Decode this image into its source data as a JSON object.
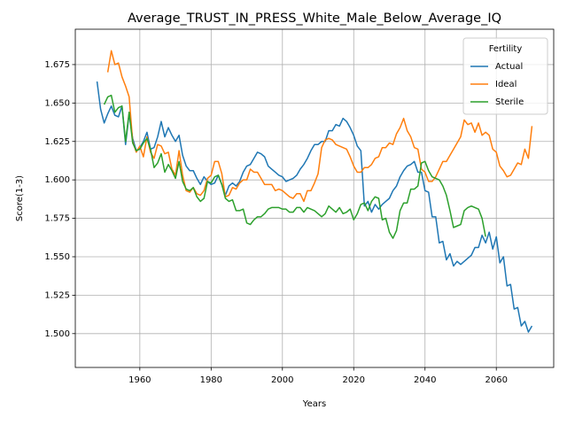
{
  "chart_data": {
    "type": "line",
    "title": "Average_TRUST_IN_PRESS_White_Male_Below_Average_IQ",
    "x_label": "Years",
    "y_label": "Score(1-3)",
    "legend_title": "Fertility",
    "legend_position": "upper right",
    "grid": true,
    "xlim": [
      1941.9,
      2076.1
    ],
    "ylim": [
      1.478,
      1.698
    ],
    "xticks": [
      1960,
      1980,
      2000,
      2020,
      2040,
      2060
    ],
    "yticks": [
      {
        "value": 1.5,
        "label": "1.500"
      },
      {
        "value": 1.525,
        "label": "1.525"
      },
      {
        "value": 1.55,
        "label": "1.550"
      },
      {
        "value": 1.575,
        "label": "1.575"
      },
      {
        "value": 1.6,
        "label": "1.600"
      },
      {
        "value": 1.625,
        "label": "1.625"
      },
      {
        "value": 1.65,
        "label": "1.650"
      },
      {
        "value": 1.675,
        "label": "1.675"
      }
    ],
    "x": [
      1948,
      1949,
      1950,
      1951,
      1952,
      1953,
      1954,
      1955,
      1956,
      1957,
      1958,
      1959,
      1960,
      1961,
      1962,
      1963,
      1964,
      1965,
      1966,
      1967,
      1968,
      1969,
      1970,
      1971,
      1972,
      1973,
      1974,
      1975,
      1976,
      1977,
      1978,
      1979,
      1980,
      1981,
      1982,
      1983,
      1984,
      1985,
      1986,
      1987,
      1988,
      1989,
      1990,
      1991,
      1992,
      1993,
      1994,
      1995,
      1996,
      1997,
      1998,
      1999,
      2000,
      2001,
      2002,
      2003,
      2004,
      2005,
      2006,
      2007,
      2008,
      2009,
      2010,
      2011,
      2012,
      2013,
      2014,
      2015,
      2016,
      2017,
      2018,
      2019,
      2020,
      2021,
      2022,
      2023,
      2024,
      2025,
      2026,
      2027,
      2028,
      2029,
      2030,
      2031,
      2032,
      2033,
      2034,
      2035,
      2036,
      2037,
      2038,
      2039,
      2040,
      2041,
      2042,
      2043,
      2044,
      2045,
      2046,
      2047,
      2048,
      2049,
      2050,
      2051,
      2052,
      2053,
      2054,
      2055,
      2056,
      2057,
      2058,
      2059,
      2060,
      2061,
      2062,
      2063,
      2064,
      2065,
      2066,
      2067,
      2068,
      2069,
      2070
    ],
    "series": [
      {
        "name": "Actual",
        "color": "#1f77b4",
        "values": [
          1.664,
          1.646,
          1.637,
          1.643,
          1.648,
          1.642,
          1.641,
          1.648,
          1.623,
          1.643,
          1.627,
          1.619,
          1.621,
          1.625,
          1.631,
          1.62,
          1.621,
          1.628,
          1.638,
          1.628,
          1.634,
          1.629,
          1.625,
          1.629,
          1.616,
          1.609,
          1.606,
          1.606,
          1.601,
          1.597,
          1.602,
          1.599,
          1.597,
          1.598,
          1.603,
          1.597,
          1.59,
          1.596,
          1.598,
          1.596,
          1.599,
          1.605,
          1.609,
          1.61,
          1.614,
          1.618,
          1.617,
          1.615,
          1.609,
          1.607,
          1.605,
          1.603,
          1.602,
          1.599,
          1.6,
          1.601,
          1.603,
          1.607,
          1.61,
          1.614,
          1.619,
          1.623,
          1.623,
          1.625,
          1.625,
          1.632,
          1.632,
          1.636,
          1.635,
          1.64,
          1.638,
          1.634,
          1.629,
          1.622,
          1.619,
          1.583,
          1.586,
          1.579,
          1.584,
          1.581,
          1.584,
          1.586,
          1.588,
          1.593,
          1.596,
          1.602,
          1.606,
          1.609,
          1.61,
          1.612,
          1.605,
          1.605,
          1.593,
          1.592,
          1.576,
          1.576,
          1.559,
          1.56,
          1.548,
          1.552,
          1.544,
          1.547,
          1.545,
          1.547,
          1.549,
          1.551,
          1.556,
          1.556,
          1.564,
          1.559,
          1.566,
          1.555,
          1.563,
          1.546,
          1.55,
          1.531,
          1.532,
          1.516,
          1.517,
          1.505,
          1.508,
          1.501,
          1.505
        ]
      },
      {
        "name": "Ideal",
        "color": "#ff7f0e",
        "values": [
          null,
          null,
          null,
          1.67,
          1.684,
          1.675,
          1.676,
          1.667,
          1.661,
          1.654,
          1.625,
          1.618,
          1.622,
          1.615,
          1.628,
          1.618,
          1.614,
          1.623,
          1.622,
          1.617,
          1.618,
          1.607,
          1.603,
          1.619,
          1.603,
          1.593,
          1.592,
          1.595,
          1.591,
          1.59,
          1.593,
          1.601,
          1.603,
          1.612,
          1.612,
          1.604,
          1.589,
          1.59,
          1.595,
          1.594,
          1.598,
          1.6,
          1.6,
          1.607,
          1.605,
          1.605,
          1.601,
          1.597,
          1.597,
          1.597,
          1.593,
          1.594,
          1.593,
          1.591,
          1.589,
          1.588,
          1.591,
          1.591,
          1.586,
          1.593,
          1.593,
          1.598,
          1.604,
          1.621,
          1.626,
          1.627,
          1.626,
          1.623,
          1.622,
          1.621,
          1.62,
          1.615,
          1.609,
          1.605,
          1.605,
          1.608,
          1.608,
          1.61,
          1.614,
          1.615,
          1.621,
          1.621,
          1.624,
          1.623,
          1.63,
          1.634,
          1.64,
          1.632,
          1.628,
          1.621,
          1.62,
          1.607,
          1.605,
          1.599,
          1.599,
          1.602,
          1.607,
          1.612,
          1.612,
          1.616,
          1.62,
          1.624,
          1.628,
          1.639,
          1.636,
          1.637,
          1.631,
          1.637,
          1.629,
          1.631,
          1.629,
          1.62,
          1.618,
          1.609,
          1.606,
          1.602,
          1.603,
          1.607,
          1.611,
          1.61,
          1.62,
          1.614,
          1.635
        ]
      },
      {
        "name": "Sterile",
        "color": "#2ca02c",
        "values": [
          null,
          null,
          1.649,
          1.654,
          1.655,
          1.644,
          1.647,
          1.648,
          1.625,
          1.644,
          1.624,
          1.619,
          1.62,
          1.624,
          1.627,
          1.62,
          1.608,
          1.611,
          1.617,
          1.605,
          1.61,
          1.606,
          1.601,
          1.612,
          1.599,
          1.594,
          1.593,
          1.595,
          1.589,
          1.586,
          1.588,
          1.599,
          1.598,
          1.602,
          1.603,
          1.597,
          1.588,
          1.586,
          1.587,
          1.58,
          1.58,
          1.581,
          1.572,
          1.571,
          1.574,
          1.576,
          1.576,
          1.578,
          1.581,
          1.582,
          1.582,
          1.582,
          1.581,
          1.581,
          1.579,
          1.579,
          1.582,
          1.582,
          1.579,
          1.582,
          1.581,
          1.58,
          1.578,
          1.576,
          1.578,
          1.583,
          1.581,
          1.579,
          1.582,
          1.578,
          1.579,
          1.581,
          1.574,
          1.578,
          1.584,
          1.585,
          1.58,
          1.586,
          1.589,
          1.588,
          1.574,
          1.575,
          1.566,
          1.562,
          1.567,
          1.58,
          1.585,
          1.585,
          1.594,
          1.594,
          1.596,
          1.611,
          1.612,
          1.606,
          1.602,
          1.601,
          1.6,
          1.596,
          1.59,
          1.58,
          1.569,
          1.57,
          1.571,
          1.58,
          1.582,
          1.583,
          1.582,
          1.581,
          1.575,
          1.563,
          null,
          null,
          null,
          null,
          null,
          null,
          null,
          null,
          null,
          null,
          null,
          null,
          null
        ]
      }
    ]
  }
}
